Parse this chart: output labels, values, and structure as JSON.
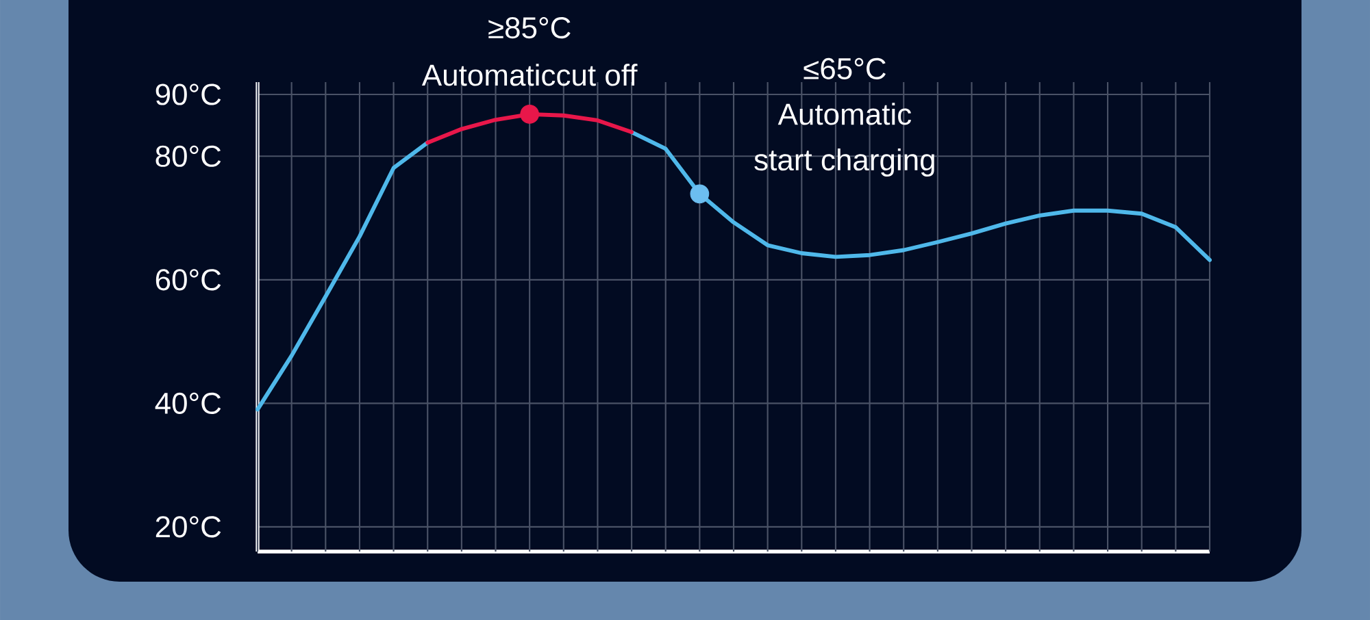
{
  "chart_data": {
    "type": "line",
    "categories": [
      null,
      null,
      null,
      null,
      null,
      null,
      null,
      null,
      null,
      null,
      null,
      null,
      null,
      null,
      null,
      null,
      null,
      null,
      null,
      null,
      null,
      null,
      null,
      null,
      null,
      null,
      null,
      null,
      null
    ],
    "series": [
      {
        "color": "#4fb8ea",
        "values": [
          39,
          47.7,
          57.3,
          67,
          78.1,
          82.2,
          null,
          null,
          null,
          null,
          null,
          null,
          null,
          null,
          null,
          null,
          null,
          null,
          null,
          null,
          null,
          null,
          null,
          null,
          null,
          null,
          null,
          null,
          null
        ]
      },
      {
        "color": "#4fb8ea",
        "values": [
          null,
          null,
          null,
          null,
          null,
          null,
          null,
          null,
          null,
          null,
          null,
          83.9,
          81.2,
          73.9,
          69.3,
          65.6,
          64.3,
          63.7,
          64,
          64.8,
          66.1,
          67.5,
          69.1,
          70.4,
          71.2,
          71.2,
          70.7,
          68.5,
          63.2
        ]
      },
      {
        "color": "#e8174a",
        "values": [
          null,
          null,
          null,
          null,
          null,
          82.2,
          84.4,
          85.9,
          86.8,
          86.6,
          85.8,
          83.9,
          null,
          null,
          null,
          null,
          null,
          null,
          null,
          null,
          null,
          null,
          null,
          null,
          null,
          null,
          null,
          null,
          null
        ]
      },
      {
        "type": "scatter",
        "color": "#e8174a",
        "values": [
          null,
          null,
          null,
          null,
          null,
          null,
          null,
          null,
          86.8,
          null,
          null,
          null,
          null,
          null,
          null,
          null,
          null,
          null,
          null,
          null,
          null,
          null,
          null,
          null,
          null,
          null,
          null,
          null,
          null
        ]
      },
      {
        "type": "scatter",
        "color": "#6cbef0",
        "values": [
          null,
          null,
          null,
          null,
          null,
          null,
          null,
          null,
          null,
          null,
          null,
          null,
          null,
          73.9,
          null,
          null,
          null,
          null,
          null,
          null,
          null,
          null,
          null,
          null,
          null,
          null,
          null,
          null,
          null
        ]
      }
    ],
    "ylim": [
      16,
      92
    ],
    "yticks": [
      {
        "value": 20,
        "label": "20°C"
      },
      {
        "value": 40,
        "label": "40°C"
      },
      {
        "value": 60,
        "label": "60°C"
      },
      {
        "value": 80,
        "label": "80°C"
      },
      {
        "value": 90,
        "label": "90°C"
      }
    ],
    "grid": true,
    "annotations": [
      "≥85°C",
      "Automaticcut off",
      "≤65°C",
      "Automatic",
      "start charging"
    ]
  }
}
